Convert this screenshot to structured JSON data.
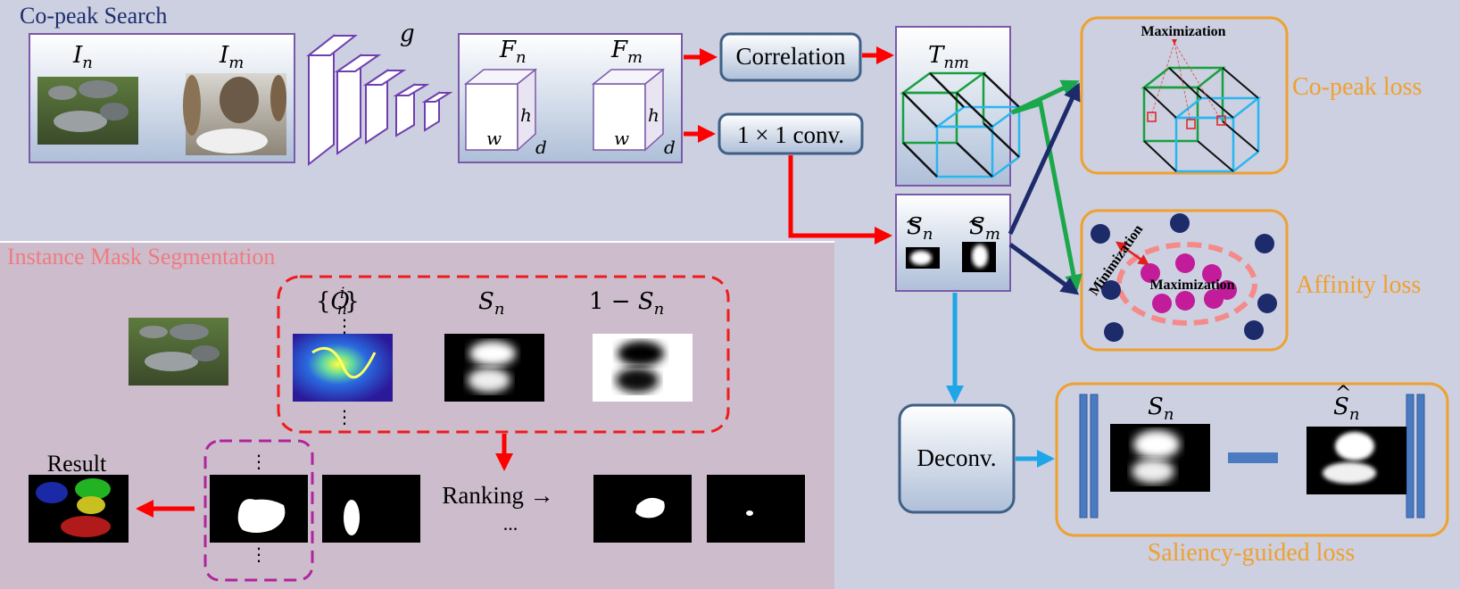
{
  "sections": {
    "copeak_title": "Co-peak Search",
    "instance_title": "Instance Mask Segmentation"
  },
  "inputs": {
    "In": {
      "base": "I",
      "sub": "n"
    },
    "Im": {
      "base": "I",
      "sub": "m"
    }
  },
  "backbone_label": "g",
  "features": {
    "Fn": {
      "base": "F",
      "sub": "n"
    },
    "Fm": {
      "base": "F",
      "sub": "m"
    },
    "dims": {
      "h": "h",
      "w": "w",
      "d": "d"
    }
  },
  "ops": {
    "correlation": "Correlation",
    "conv": "1 × 1 conv.",
    "deconv": "Deconv."
  },
  "tensor": {
    "base": "T",
    "sub": "nm"
  },
  "saliency_small": {
    "Sn": {
      "base": "S",
      "sub": "n"
    },
    "Sm": {
      "base": "S",
      "sub": "m"
    }
  },
  "losses": {
    "copeak": "Co-peak loss",
    "affinity": "Affinity loss",
    "saliency": "Saliency-guided loss"
  },
  "loss_annotations": {
    "copeak_max": "Maximization",
    "affinity_min": "Minimization",
    "affinity_max": "Maximization"
  },
  "instance": {
    "On": {
      "brace_open": "{",
      "base": "O",
      "sub": "n",
      "sup": "i",
      "brace_close": "}"
    },
    "Sn": {
      "base": "S",
      "sub": "n"
    },
    "oneMinusSn": {
      "prefix": "1 − ",
      "base": "S",
      "sub": "n"
    },
    "dots": "⋮",
    "ranking": "Ranking →",
    "ellipsis": "...",
    "result": "Result"
  },
  "saliency_loss_panel": {
    "Sn": {
      "base": "S",
      "sub": "n"
    },
    "Sn_hat": {
      "base": "S",
      "sub": "n"
    }
  },
  "colors": {
    "top_background": "#ccd0e0",
    "bottom_background": "#cdbdcc",
    "right_background": "#ccd0e0",
    "box_border_purple": "#7a5aa8",
    "op_border": "#3f5f86",
    "loss_border": "#f0a030",
    "loss_text": "#f0a030",
    "copeak_title": "#1f2f6f",
    "instance_title": "#f07a80",
    "arrow_red": "#ff0000",
    "arrow_green": "#1aa84a",
    "arrow_navy": "#1d2b6b",
    "arrow_blue": "#1ea6e8",
    "dashed_red": "#ee1c1c",
    "dashed_magenta": "#b0249c",
    "dot_navy": "#1d2b6b",
    "dot_magenta": "#c21c9a",
    "ring_pink": "#f58a8a",
    "cube_green": "#17a040",
    "cube_blue": "#29b6f0",
    "bar_blue": "#4a7bc0"
  }
}
